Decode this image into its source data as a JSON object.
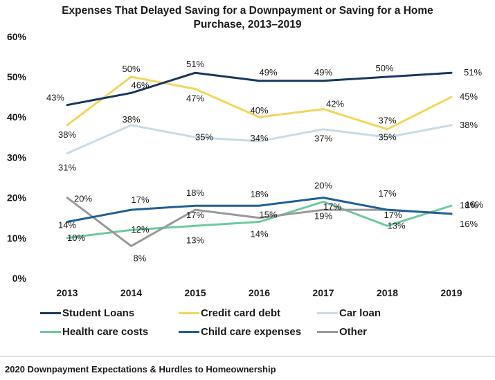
{
  "chart_data": {
    "type": "line",
    "title_lines": [
      "Expenses That Delayed Saving for a Downpayment or Saving for a Home",
      "Purchase, 2013–2019"
    ],
    "x": [
      "2013",
      "2014",
      "2015",
      "2016",
      "2017",
      "2018",
      "2019"
    ],
    "ylim": [
      0,
      60
    ],
    "yticks": [
      "0%",
      "10%",
      "20%",
      "30%",
      "40%",
      "50%",
      "60%"
    ],
    "grid": false,
    "legend_position": "bottom",
    "series": [
      {
        "name": "Student Loans",
        "color": "#17375e",
        "values": [
          43,
          46,
          51,
          49,
          49,
          50,
          51
        ]
      },
      {
        "name": "Credit card debt",
        "color": "#f2d55b",
        "values": [
          38,
          50,
          47,
          40,
          42,
          37,
          45
        ]
      },
      {
        "name": "Car loan",
        "color": "#c6dbe8",
        "values": [
          31,
          38,
          35,
          34,
          37,
          35,
          38
        ]
      },
      {
        "name": "Health care costs",
        "color": "#6dcaa0",
        "values": [
          10,
          12,
          13,
          14,
          19,
          13,
          18
        ]
      },
      {
        "name": "Child care expenses",
        "color": "#1f5f95",
        "values": [
          14,
          17,
          18,
          18,
          20,
          17,
          16
        ]
      },
      {
        "name": "Other",
        "color": "#999999",
        "values": [
          20,
          8,
          17,
          15,
          17,
          17,
          16
        ]
      }
    ],
    "data_labels": [
      [
        "43%",
        "46%",
        "51%",
        "49%",
        "49%",
        "50%",
        "51%"
      ],
      [
        "38%",
        "50%",
        "47%",
        "40%",
        "42%",
        "37%",
        "45%"
      ],
      [
        "31%",
        "38%",
        "35%",
        "34%",
        "37%",
        "35%",
        "38%"
      ],
      [
        "10%",
        "12%",
        "13%",
        "14%",
        "19%",
        "13%",
        "18%"
      ],
      [
        "14%",
        "17%",
        "18%",
        "18%",
        "20%",
        "17%",
        "16%"
      ],
      [
        "20%",
        "8%",
        "17%",
        "15%",
        "17%",
        "17%",
        "16%"
      ]
    ]
  },
  "footer": "2020 Downpayment Expectations & Hurdles to Homeownership"
}
